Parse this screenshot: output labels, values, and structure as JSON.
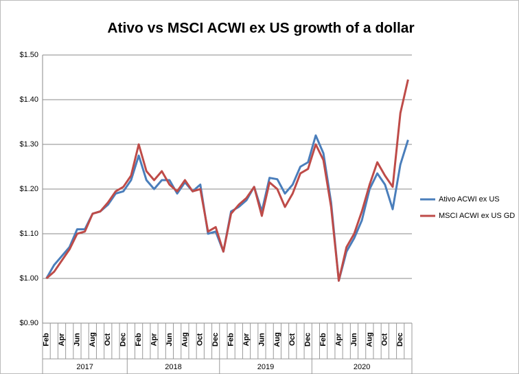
{
  "chart_data": {
    "type": "line",
    "title": "Ativo vs MSCI ACWI ex US growth of a dollar",
    "categories": [
      "Feb",
      null,
      "Apr",
      null,
      "Jun",
      null,
      "Aug",
      null,
      "Oct",
      null,
      "Dec",
      null,
      "Feb",
      null,
      "Apr",
      null,
      "Jun",
      null,
      "Aug",
      null,
      "Oct",
      null,
      "Dec",
      null,
      "Feb",
      null,
      "Apr",
      null,
      "Jun",
      null,
      "Aug",
      null,
      "Oct",
      null,
      "Dec",
      null,
      "Feb",
      null,
      "Apr",
      null,
      "Jun",
      null,
      "Aug",
      null,
      "Oct",
      null,
      "Dec",
      null
    ],
    "category_years": [
      "2017",
      "2017",
      "2017",
      "2017",
      "2017",
      "2017",
      "2017",
      "2017",
      "2017",
      "2017",
      "2017",
      "2018",
      "2018",
      "2018",
      "2018",
      "2018",
      "2018",
      "2018",
      "2018",
      "2018",
      "2018",
      "2018",
      "2018",
      "2019",
      "2019",
      "2019",
      "2019",
      "2019",
      "2019",
      "2019",
      "2019",
      "2019",
      "2019",
      "2019",
      "2019",
      "2020",
      "2020",
      "2020",
      "2020",
      "2020",
      "2020",
      "2020",
      "2020",
      "2020",
      "2020",
      "2020",
      "2020",
      "2020"
    ],
    "series": [
      {
        "name": "Ativo ACWI ex US",
        "color": "#4a7ebb",
        "values": [
          1.0,
          1.03,
          1.05,
          1.07,
          1.11,
          1.11,
          1.145,
          1.15,
          1.165,
          1.19,
          1.195,
          1.22,
          1.275,
          1.22,
          1.2,
          1.22,
          1.22,
          1.19,
          1.215,
          1.195,
          1.21,
          1.1,
          1.105,
          1.06,
          1.15,
          1.16,
          1.175,
          1.205,
          1.15,
          1.225,
          1.222,
          1.19,
          1.21,
          1.25,
          1.26,
          1.32,
          1.28,
          1.17,
          0.995,
          1.06,
          1.09,
          1.13,
          1.2,
          1.235,
          1.21,
          1.155,
          1.255,
          1.31
        ]
      },
      {
        "name": "MSCI ACWI ex US GD",
        "color": "#be4b48",
        "values": [
          1.0,
          1.015,
          1.04,
          1.065,
          1.1,
          1.105,
          1.145,
          1.15,
          1.17,
          1.195,
          1.205,
          1.23,
          1.3,
          1.24,
          1.22,
          1.24,
          1.21,
          1.195,
          1.22,
          1.195,
          1.2,
          1.105,
          1.115,
          1.06,
          1.145,
          1.165,
          1.18,
          1.205,
          1.14,
          1.215,
          1.2,
          1.16,
          1.19,
          1.235,
          1.245,
          1.3,
          1.265,
          1.16,
          0.995,
          1.07,
          1.1,
          1.15,
          1.21,
          1.26,
          1.23,
          1.205,
          1.37,
          1.445
        ]
      }
    ],
    "ylim": [
      0.9,
      1.5
    ],
    "yticks": [
      {
        "value": 0.9,
        "label": "$0.90"
      },
      {
        "value": 1.0,
        "label": "$1.00"
      },
      {
        "value": 1.1,
        "label": "$1.10"
      },
      {
        "value": 1.2,
        "label": "$1.20"
      },
      {
        "value": 1.3,
        "label": "$1.30"
      },
      {
        "value": 1.4,
        "label": "$1.40"
      },
      {
        "value": 1.5,
        "label": "$1.50"
      }
    ],
    "grid": true,
    "legend": "right"
  }
}
